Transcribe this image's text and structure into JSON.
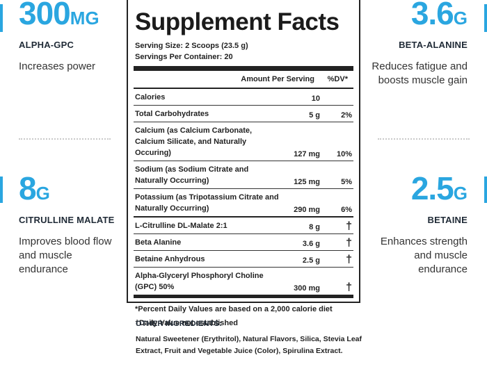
{
  "left_stats": [
    {
      "value": "300",
      "unit": "MG",
      "name": "ALPHA-GPC",
      "desc": "Increases power"
    },
    {
      "value": "8",
      "unit": "G",
      "name": "CITRULLINE MALATE",
      "desc": "Improves blood flow and muscle endurance"
    }
  ],
  "right_stats": [
    {
      "value": "3.6",
      "unit": "G",
      "name": "BETA-ALANINE",
      "desc": "Reduces fatigue and boosts muscle gain"
    },
    {
      "value": "2.5",
      "unit": "G",
      "name": "BETAINE",
      "desc": "Enhances strength and muscle endurance"
    }
  ],
  "facts": {
    "title": "Supplement Facts",
    "serving_size": "Serving Size: 2 Scoops (23.5 g)",
    "servings_per_container": "Servings Per Container: 20",
    "header_amount": "Amount Per Serving",
    "header_dv": "%DV*",
    "rows": [
      {
        "label": "Calories",
        "amount": "10",
        "dv": ""
      },
      {
        "label": "Total Carbohydrates",
        "amount": "5 g",
        "dv": "2%"
      },
      {
        "label": "Calcium (as Calcium Carbonate, Calcium Silicate, and Naturally Occuring)",
        "amount": "127 mg",
        "dv": "10%"
      },
      {
        "label": "Sodium (as Sodium Citrate and Naturally Occurring)",
        "amount": "125 mg",
        "dv": "5%"
      },
      {
        "label": "Potassium (as Tripotassium Citrate and Naturally Occurring)",
        "amount": "290 mg",
        "dv": "6%"
      },
      {
        "label": "L-Citrulline DL-Malate 2:1",
        "amount": "8 g",
        "dv": "†"
      },
      {
        "label": "Beta Alanine",
        "amount": "3.6 g",
        "dv": "†"
      },
      {
        "label": "Betaine Anhydrous",
        "amount": "2.5 g",
        "dv": "†"
      },
      {
        "label": "Alpha-Glyceryl Phosphoryl Choline (GPC) 50%",
        "amount": "300 mg",
        "dv": "†"
      }
    ],
    "note_dv": "*Percent Daily Values are based on a 2,000 calorie diet",
    "note_dagger": "†Daily Value not established"
  },
  "other_ingredients": {
    "heading": "OTHER INGREDIENTS:",
    "text": "Natural Sweetener (Erythritol), Natural Flavors, Silica, Stevia Leaf Extract, Fruit and Vegetable Juice (Color), Spirulina Extract."
  },
  "colors": {
    "accent": "#2aa6e0",
    "text_dark": "#1f2a36"
  }
}
